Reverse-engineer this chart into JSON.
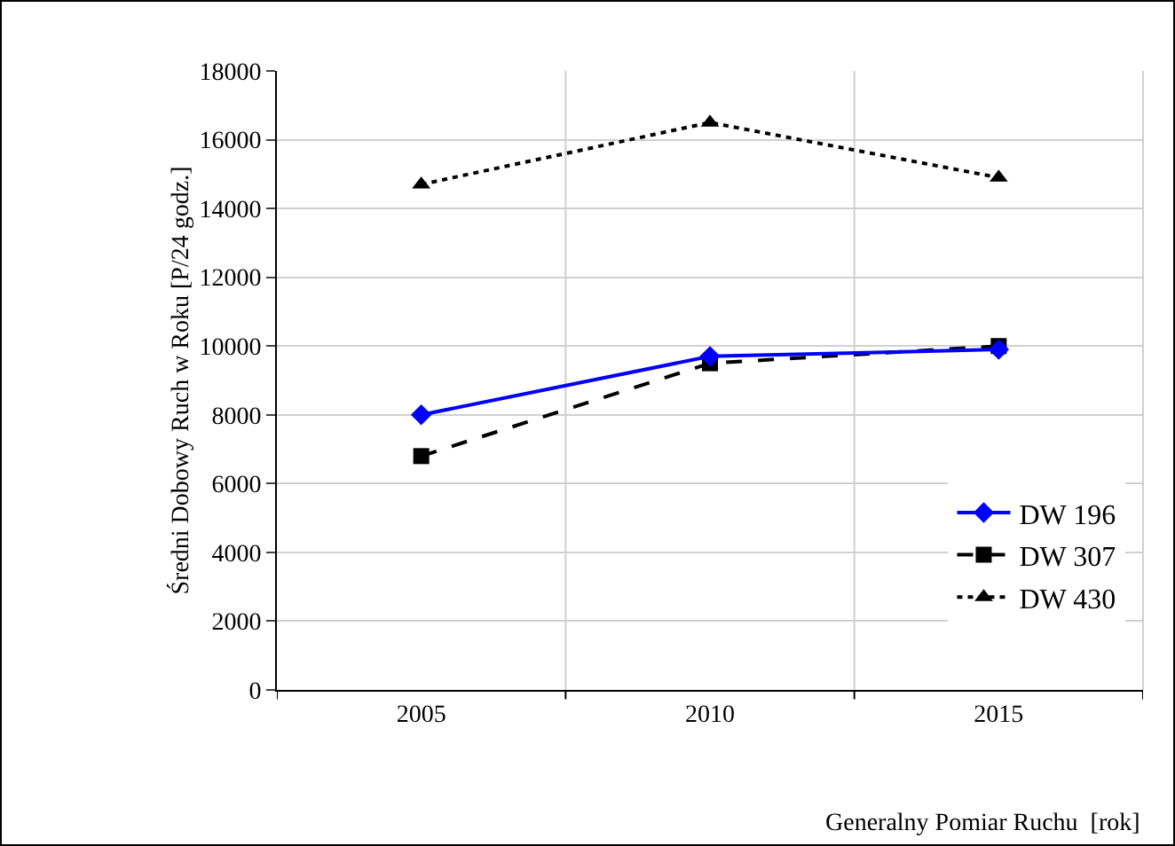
{
  "chart_data": {
    "type": "line",
    "xlabel": "Generalny Pomiar Ruchu  [rok]",
    "ylabel": "Średni Dobowy Ruch w Roku [P/24 godz.]",
    "categories": [
      "2005",
      "2010",
      "2015"
    ],
    "series": [
      {
        "name": "DW 196",
        "color": "#0000ff",
        "values": [
          8000,
          9700,
          9900
        ],
        "marker": "diamond",
        "line_style": "solid"
      },
      {
        "name": "DW 307",
        "color": "#000000",
        "values": [
          6800,
          9500,
          10000
        ],
        "marker": "square",
        "line_style": "dashed"
      },
      {
        "name": "DW 430",
        "color": "#000000",
        "values": [
          14700,
          16500,
          14900
        ],
        "marker": "triangle",
        "line_style": "dotted"
      }
    ],
    "ylim": [
      0,
      18000
    ],
    "yticks": [
      0,
      2000,
      4000,
      6000,
      8000,
      10000,
      12000,
      14000,
      16000,
      18000
    ],
    "grid": true,
    "legend": "bottom right"
  }
}
